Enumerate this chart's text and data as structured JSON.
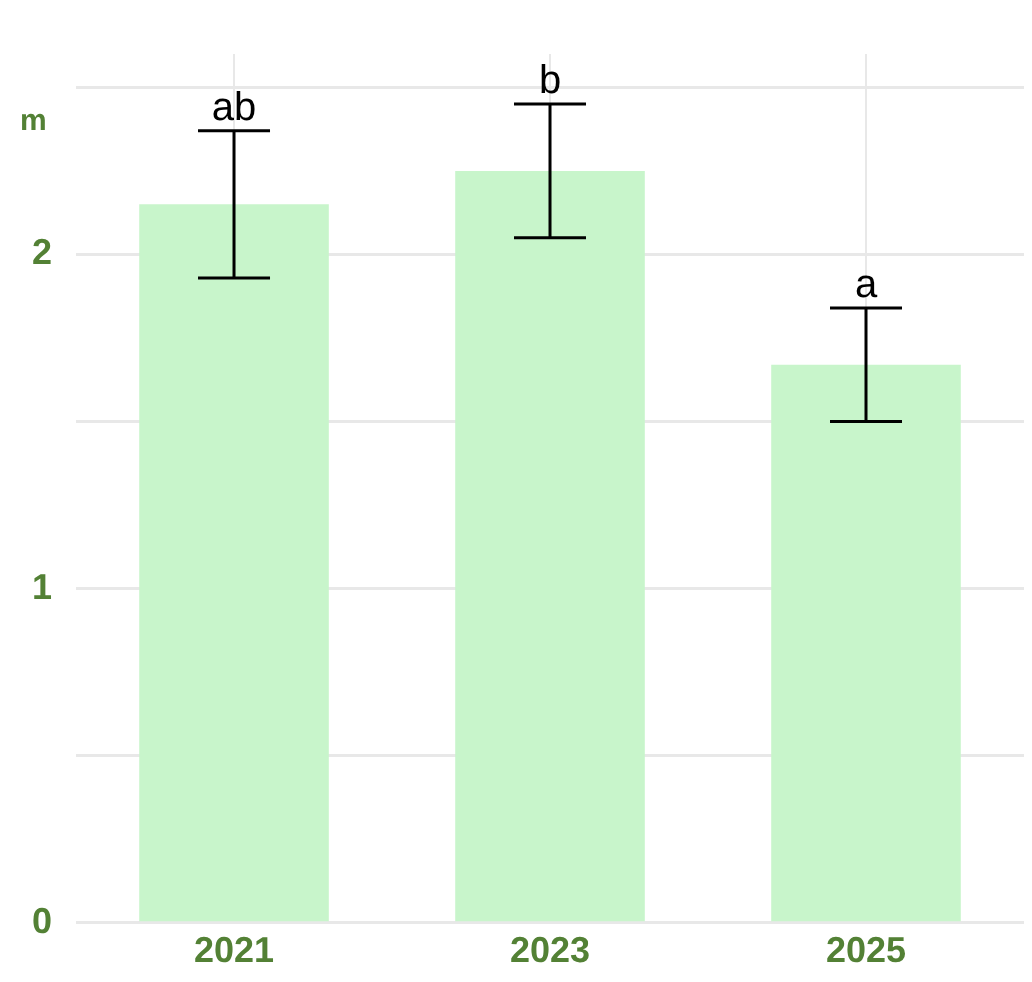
{
  "chart_data": {
    "type": "bar",
    "ylabel": "m",
    "categories": [
      "2021",
      "2023",
      "2025"
    ],
    "series": [
      {
        "color": "#c8f5cb",
        "values": [
          2.15,
          2.25,
          1.67
        ],
        "errors": [
          0.22,
          0.2,
          0.17
        ]
      }
    ],
    "ylim": [
      0,
      2.6
    ],
    "yticks": [
      0,
      {
        "value": 0.5,
        "label": null
      },
      1,
      {
        "value": 1.5,
        "label": null
      },
      2,
      {
        "value": 2.5,
        "label": null
      }
    ],
    "grid": true,
    "legend": false,
    "annotations": [
      {
        "text": "ab",
        "x": "2021",
        "y": 2.37
      },
      {
        "text": "b",
        "x": "2023",
        "y": 2.45
      },
      {
        "text": "a",
        "x": "2025",
        "y": 1.84
      }
    ]
  }
}
